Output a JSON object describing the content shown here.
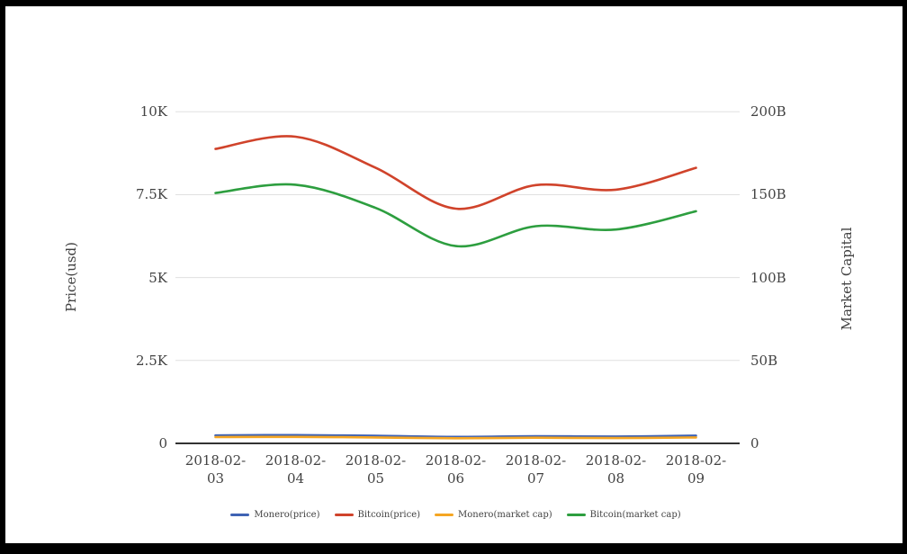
{
  "chart_data": {
    "type": "line",
    "x": [
      "2018-02-03",
      "2018-02-04",
      "2018-02-05",
      "2018-02-06",
      "2018-02-07",
      "2018-02-08",
      "2018-02-09"
    ],
    "series": [
      {
        "name": "Monero(price)",
        "axis": "left",
        "color": "#3f63b4",
        "values": [
          240,
          250,
          228,
          195,
          215,
          205,
          232
        ]
      },
      {
        "name": "Bitcoin(price)",
        "axis": "left",
        "color": "#d0432b",
        "values": [
          8880,
          9250,
          8310,
          7080,
          7790,
          7650,
          8310
        ]
      },
      {
        "name": "Monero(market cap)",
        "axis": "right",
        "color": "#f5a623",
        "values": [
          3.8,
          3.9,
          3.6,
          3.1,
          3.4,
          3.2,
          3.6
        ]
      },
      {
        "name": "Bitcoin(market cap)",
        "axis": "right",
        "color": "#2d9e3f",
        "values": [
          151,
          156,
          142,
          119,
          131,
          129,
          140
        ]
      }
    ],
    "left_axis": {
      "title": "Price(usd)",
      "tick_labels": [
        "0",
        "2.5K",
        "5K",
        "7.5K",
        "10K"
      ],
      "tick_values": [
        0,
        2500,
        5000,
        7500,
        10000
      ],
      "range": [
        0,
        10000
      ]
    },
    "right_axis": {
      "title": "Market Capital",
      "tick_labels": [
        "0",
        "50B",
        "100B",
        "150B",
        "200B"
      ],
      "tick_values": [
        0,
        50,
        100,
        150,
        200
      ],
      "range": [
        0,
        200
      ]
    },
    "grid": true,
    "legend_position": "bottom",
    "colors": {
      "gridline": "#e0e0e0",
      "axis_line": "#333333",
      "text": "#424242",
      "background": "#ffffff",
      "frame_border": "#000000"
    }
  }
}
